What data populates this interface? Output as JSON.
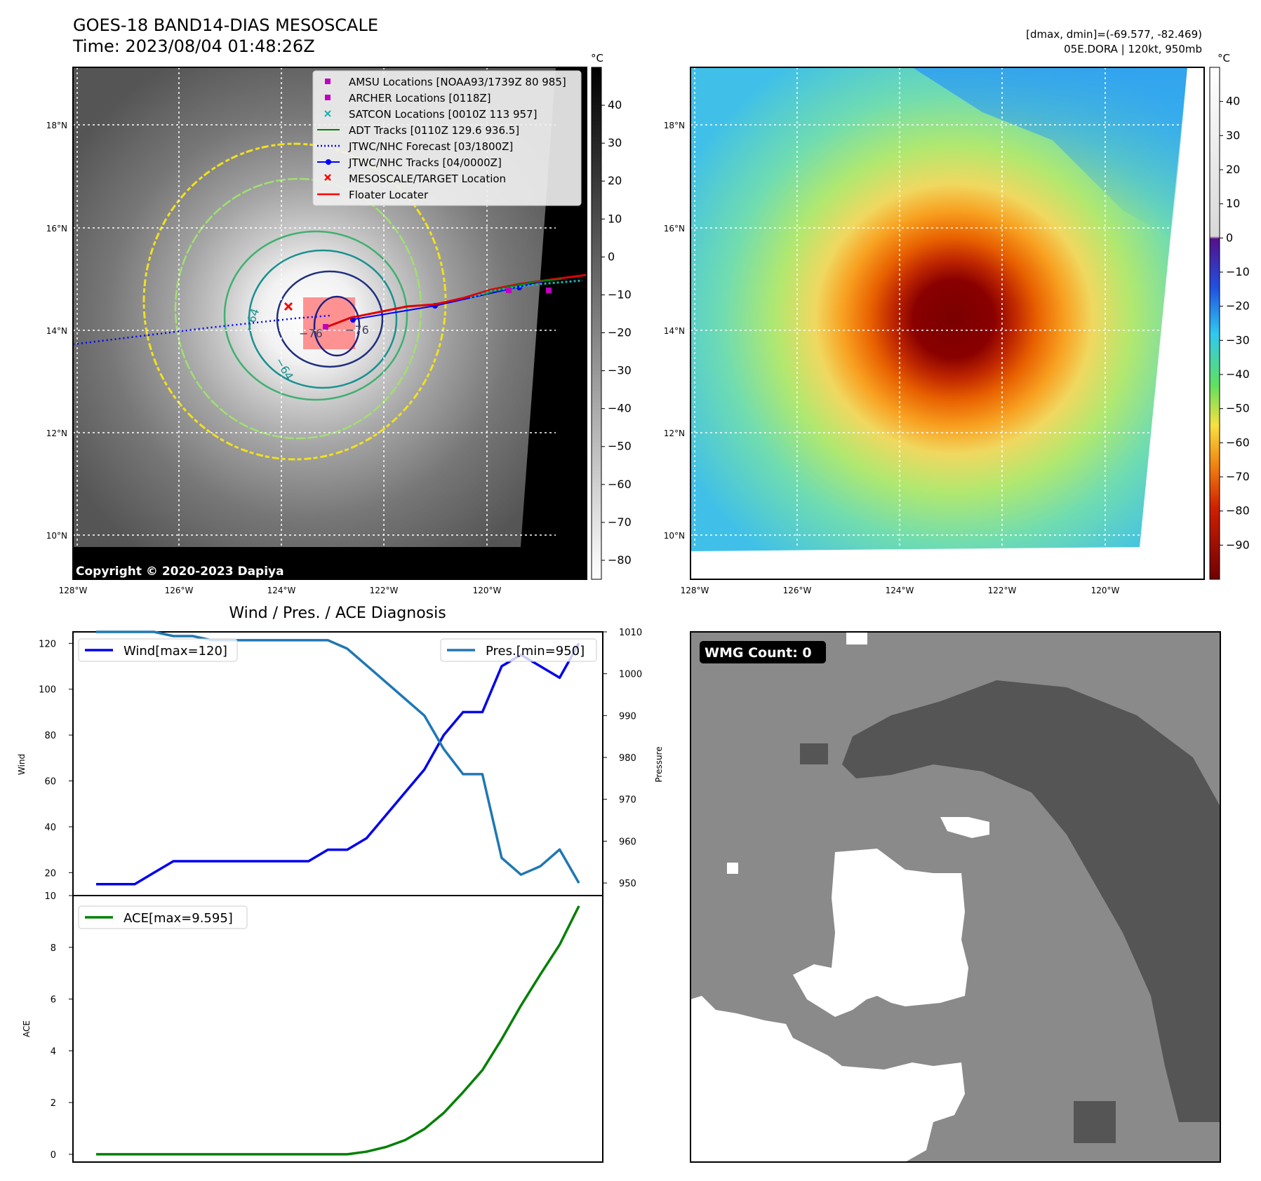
{
  "header": {
    "title": "GOES-18 BAND14-DIAS MESOSCALE",
    "time": "Time: 2023/08/04 01:48:26Z",
    "dmax_dmin": "[dmax, dmin]=(-69.577, -82.469)",
    "storm_info": "05E.DORA | 120kt, 950mb",
    "copyright": "Copyright © 2020-2023 Dapiya",
    "colorbar_unit": "°C"
  },
  "map": {
    "lat_labels": [
      "18°N",
      "16°N",
      "14°N",
      "12°N",
      "10°N"
    ],
    "lon_labels": [
      "128°W",
      "126°W",
      "124°W",
      "122°W",
      "120°W"
    ],
    "gray_colorbar_ticks": [
      "40",
      "30",
      "20",
      "10",
      "0",
      "−10",
      "−20",
      "−30",
      "−40",
      "−50",
      "−60",
      "−70",
      "−80"
    ],
    "color_colorbar_ticks": [
      "40",
      "30",
      "20",
      "10",
      "0",
      "−10",
      "−20",
      "−30",
      "−40",
      "−50",
      "−60",
      "−70",
      "−80",
      "−90"
    ],
    "contour_labels": [
      "−64",
      "−64",
      "−76",
      "−76"
    ],
    "legend": [
      {
        "label": "AMSU Locations [NOAA93/1739Z 80 985]",
        "color": "#c000c0",
        "marker": "square"
      },
      {
        "label": "ARCHER Locations [0118Z]",
        "color": "#c000c0",
        "marker": "square"
      },
      {
        "label": "SATCON Locations [0010Z 113 957]",
        "color": "#1ab0b0",
        "marker": "x"
      },
      {
        "label": "ADT Tracks [0110Z 129.6 936.5]",
        "color": "#008000",
        "marker": "line"
      },
      {
        "label": "JTWC/NHC Forecast [03/1800Z]",
        "color": "#0000ff",
        "marker": "dotted"
      },
      {
        "label": "JTWC/NHC Tracks [04/0000Z]",
        "color": "#0000ff",
        "marker": "line-dot"
      },
      {
        "label": "MESOSCALE/TARGET Location",
        "color": "#ff0000",
        "marker": "x"
      },
      {
        "label": "Floater Locater",
        "color": "#ff0000",
        "marker": "line"
      }
    ]
  },
  "chart_data": [
    {
      "type": "line",
      "title": "Wind / Pres. / ACE Diagnosis",
      "ylabel": "Wind",
      "ylabel_right": "Pressure",
      "ylim": [
        10,
        125
      ],
      "ylim_right": [
        947,
        1010
      ],
      "yticks": [
        20,
        40,
        60,
        80,
        100,
        120
      ],
      "yticks_right": [
        950,
        960,
        970,
        980,
        990,
        1000,
        1010
      ],
      "series": [
        {
          "name": "Wind[max=120]",
          "color": "#0000ee",
          "axis": "left",
          "values": [
            15,
            15,
            15,
            20,
            25,
            25,
            25,
            25,
            25,
            25,
            25,
            25,
            30,
            30,
            35,
            45,
            55,
            65,
            80,
            90,
            90,
            110,
            115,
            110,
            105,
            120
          ]
        },
        {
          "name": "Pres.[min=950]",
          "color": "#1f77b4",
          "axis": "right",
          "values": [
            1010,
            1010,
            1010,
            1010,
            1009,
            1009,
            1008,
            1008,
            1008,
            1008,
            1008,
            1008,
            1008,
            1006,
            1002,
            998,
            994,
            990,
            982,
            976,
            976,
            956,
            952,
            954,
            958,
            950
          ]
        }
      ]
    },
    {
      "type": "line",
      "ylabel": "ACE",
      "ylim": [
        -0.3,
        10
      ],
      "yticks": [
        0,
        2,
        4,
        6,
        8,
        10
      ],
      "series": [
        {
          "name": "ACE[max=9.595]",
          "color": "#008000",
          "values": [
            0,
            0,
            0,
            0,
            0,
            0,
            0,
            0,
            0,
            0,
            0,
            0,
            0,
            0,
            0.1,
            0.28,
            0.55,
            0.98,
            1.6,
            2.4,
            3.25,
            4.45,
            5.75,
            6.95,
            8.1,
            9.595
          ]
        }
      ]
    }
  ],
  "wmg": {
    "label": "WMG Count: 0"
  }
}
